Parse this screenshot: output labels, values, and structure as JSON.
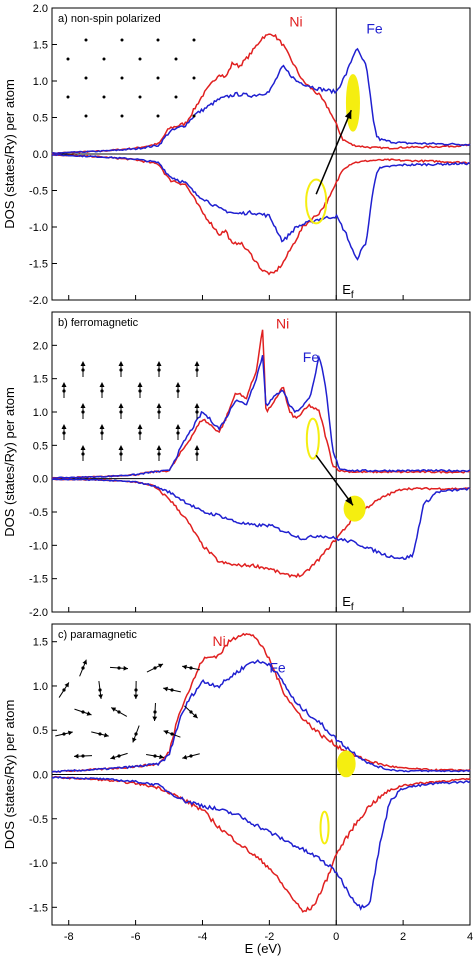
{
  "figure": {
    "xlabel": "E (eV)",
    "ylabel": "DOS (states/Ry) per atom"
  },
  "colors": {
    "ni": "#e02020",
    "fe": "#2020d0",
    "highlight": "#f5ee10",
    "axis": "#000000"
  },
  "chart_data": [
    {
      "type": "line",
      "title": "a) non-spin polarized",
      "xlabel": "",
      "ylabel": "DOS (states/Ry) per atom",
      "xlim": [
        -8.5,
        4
      ],
      "ylim": [
        -2.0,
        2.0
      ],
      "xticks": [
        -8,
        -6,
        -4,
        -2,
        0,
        2,
        4
      ],
      "yticks": [
        "2.0",
        "1.5",
        "1.0",
        "0.5",
        "0.0",
        "-0.5",
        "-1.0",
        "-1.5",
        "-2.0"
      ],
      "fermi_label": "Ef",
      "inset": "dots",
      "series": [
        {
          "name": "Ni",
          "x": [
            -8.5,
            -7,
            -6,
            -5.3,
            -5,
            -4.5,
            -4.2,
            -4,
            -3.5,
            -3.3,
            -3.1,
            -2.9,
            -2.6,
            -2.2,
            -1.9,
            -1.6,
            -1.3,
            -1,
            -0.5,
            -0.2,
            0,
            0.2,
            0.5,
            1,
            1.6,
            2,
            3,
            4
          ],
          "y": [
            0.01,
            0.04,
            0.08,
            0.14,
            0.35,
            0.42,
            0.65,
            0.8,
            1.1,
            1.05,
            1.25,
            1.2,
            1.35,
            1.6,
            1.65,
            1.5,
            1.25,
            1.0,
            0.8,
            0.6,
            0.4,
            0.2,
            0.12,
            0.09,
            0.08,
            0.09,
            0.1,
            0.12
          ]
        },
        {
          "name": "Fe",
          "x": [
            -8.5,
            -7,
            -6,
            -5.3,
            -5,
            -4.5,
            -4.2,
            -4,
            -3.5,
            -3,
            -2.5,
            -2,
            -1.6,
            -1.2,
            -0.6,
            0,
            0.3,
            0.6,
            0.9,
            1.1,
            1.2,
            1.3,
            1.6,
            2,
            3,
            4
          ],
          "y": [
            0.01,
            0.04,
            0.07,
            0.12,
            0.3,
            0.4,
            0.55,
            0.6,
            0.75,
            0.82,
            0.8,
            0.85,
            1.2,
            1.0,
            0.9,
            0.85,
            1.1,
            1.45,
            1.2,
            0.5,
            0.25,
            0.2,
            0.17,
            0.15,
            0.14,
            0.13
          ]
        },
        {
          "name": "Ni down",
          "x": [
            -8.5,
            -7,
            -6,
            -5.3,
            -5,
            -4.5,
            -4.2,
            -4,
            -3.5,
            -3.3,
            -3.1,
            -2.9,
            -2.6,
            -2.2,
            -1.9,
            -1.6,
            -1.3,
            -1,
            -0.5,
            -0.2,
            0,
            0.2,
            0.5,
            1,
            1.6,
            2,
            3,
            4
          ],
          "y": [
            -0.01,
            -0.04,
            -0.08,
            -0.14,
            -0.35,
            -0.42,
            -0.65,
            -0.8,
            -1.1,
            -1.05,
            -1.25,
            -1.2,
            -1.35,
            -1.6,
            -1.65,
            -1.5,
            -1.25,
            -1.0,
            -0.8,
            -0.6,
            -0.4,
            -0.2,
            -0.12,
            -0.09,
            -0.08,
            -0.09,
            -0.1,
            -0.12
          ]
        },
        {
          "name": "Fe down",
          "x": [
            -8.5,
            -7,
            -6,
            -5.3,
            -5,
            -4.5,
            -4.2,
            -4,
            -3.5,
            -3,
            -2.5,
            -2,
            -1.6,
            -1.2,
            -0.6,
            0,
            0.3,
            0.6,
            0.9,
            1.1,
            1.2,
            1.3,
            1.6,
            2,
            3,
            4
          ],
          "y": [
            -0.01,
            -0.04,
            -0.07,
            -0.12,
            -0.3,
            -0.4,
            -0.55,
            -0.6,
            -0.75,
            -0.82,
            -0.8,
            -0.85,
            -1.2,
            -1.0,
            -0.9,
            -0.85,
            -1.1,
            -1.45,
            -1.2,
            -0.5,
            -0.25,
            -0.2,
            -0.17,
            -0.15,
            -0.14,
            -0.13
          ]
        }
      ],
      "highlights": [
        {
          "shape": "ellipse",
          "fill": true,
          "cx": 0.5,
          "cy": 0.7,
          "rx": 0.18,
          "ry": 0.38
        },
        {
          "shape": "ellipse",
          "fill": false,
          "cx": -0.6,
          "cy": -0.65,
          "rx": 0.3,
          "ry": 0.3
        }
      ],
      "arrow": {
        "from": [
          -0.6,
          -0.55
        ],
        "to": [
          0.45,
          0.6
        ]
      }
    },
    {
      "type": "line",
      "title": "b) ferromagnetic",
      "xlabel": "",
      "ylabel": "DOS (states/Ry) per atom",
      "xlim": [
        -8.5,
        4
      ],
      "ylim": [
        -2.0,
        2.5
      ],
      "xticks": [
        -8,
        -6,
        -4,
        -2,
        0,
        2,
        4
      ],
      "yticks": [
        "2.0",
        "1.5",
        "1.0",
        "0.5",
        "0.0",
        "-0.5",
        "-1.0",
        "-1.5",
        "-2.0"
      ],
      "fermi_label": "Ef",
      "inset": "spins-aligned",
      "series": [
        {
          "name": "Ni",
          "x": [
            -8.5,
            -7,
            -6,
            -5.5,
            -5,
            -4.5,
            -4,
            -3.5,
            -3.3,
            -3,
            -2.7,
            -2.4,
            -2.2,
            -2.1,
            -1.9,
            -1.6,
            -1.4,
            -1.2,
            -0.8,
            -0.5,
            -0.3,
            -0.1,
            0.1,
            0.5,
            1,
            2,
            3,
            4
          ],
          "y": [
            0.01,
            0.03,
            0.06,
            0.1,
            0.12,
            0.5,
            0.9,
            0.7,
            0.9,
            1.3,
            1.2,
            1.6,
            2.25,
            1.0,
            1.1,
            1.4,
            1.0,
            0.9,
            1.1,
            1.0,
            0.6,
            0.2,
            0.12,
            0.1,
            0.1,
            0.1,
            0.1,
            0.1
          ]
        },
        {
          "name": "Fe",
          "x": [
            -8.5,
            -7,
            -6,
            -5.5,
            -5,
            -4.5,
            -4,
            -3.5,
            -3.3,
            -3,
            -2.7,
            -2.4,
            -2.2,
            -2.1,
            -1.9,
            -1.6,
            -1.4,
            -1.2,
            -0.8,
            -0.5,
            -0.3,
            -0.1,
            0.1,
            0.5,
            1,
            2,
            3,
            4
          ],
          "y": [
            0.01,
            0.03,
            0.06,
            0.1,
            0.12,
            0.6,
            1.0,
            0.75,
            0.9,
            1.2,
            1.1,
            1.5,
            1.85,
            1.1,
            1.2,
            1.35,
            1.1,
            1.0,
            1.2,
            1.85,
            1.3,
            0.4,
            0.15,
            0.12,
            0.12,
            0.12,
            0.12,
            0.12
          ]
        },
        {
          "name": "Ni down",
          "x": [
            -8.5,
            -7,
            -6,
            -5.5,
            -5,
            -4.5,
            -4,
            -3.5,
            -3,
            -2.5,
            -2,
            -1.5,
            -1,
            -0.5,
            0,
            0.5,
            1,
            1.5,
            2,
            3,
            4
          ],
          "y": [
            -0.01,
            -0.02,
            -0.05,
            -0.1,
            -0.3,
            -0.6,
            -1.0,
            -1.25,
            -1.3,
            -1.3,
            -1.35,
            -1.45,
            -1.45,
            -1.2,
            -0.9,
            -0.6,
            -0.4,
            -0.25,
            -0.15,
            -0.15,
            -0.15
          ]
        },
        {
          "name": "Fe down",
          "x": [
            -8.5,
            -7,
            -6,
            -5.5,
            -5,
            -4.5,
            -4,
            -3.5,
            -3,
            -2.5,
            -2,
            -1.5,
            -1,
            -0.5,
            0,
            0.5,
            1,
            1.5,
            2,
            2.3,
            2.6,
            3,
            4
          ],
          "y": [
            -0.01,
            -0.02,
            -0.05,
            -0.1,
            -0.2,
            -0.35,
            -0.5,
            -0.55,
            -0.65,
            -0.7,
            -0.7,
            -0.8,
            -0.9,
            -0.85,
            -0.9,
            -0.95,
            -1.05,
            -1.15,
            -1.2,
            -1.15,
            -0.4,
            -0.2,
            -0.15
          ]
        }
      ],
      "highlights": [
        {
          "shape": "ellipse",
          "fill": false,
          "cx": -0.7,
          "cy": 0.6,
          "rx": 0.18,
          "ry": 0.3
        },
        {
          "shape": "ellipse",
          "fill": true,
          "cx": 0.55,
          "cy": -0.45,
          "rx": 0.3,
          "ry": 0.18
        }
      ],
      "arrow": {
        "from": [
          -0.6,
          0.35
        ],
        "to": [
          0.5,
          -0.4
        ]
      }
    },
    {
      "type": "line",
      "title": "c) paramagnetic",
      "xlabel": "E (eV)",
      "ylabel": "DOS (states/Ry) per atom",
      "xlim": [
        -8.5,
        4
      ],
      "ylim": [
        -1.7,
        1.7
      ],
      "xticks": [
        -8,
        -6,
        -4,
        -2,
        0,
        2,
        4
      ],
      "yticks": [
        "1.5",
        "1.0",
        "0.5",
        "0.0",
        "-0.5",
        "-1.0",
        "-1.5"
      ],
      "inset": "spins-random",
      "series": [
        {
          "name": "Ni",
          "x": [
            -8.5,
            -7,
            -6,
            -5.3,
            -5,
            -4.7,
            -4.4,
            -4,
            -3.5,
            -3.2,
            -2.8,
            -2.4,
            -2,
            -1.6,
            -1.2,
            -0.8,
            -0.4,
            0,
            0.5,
            1,
            1.5,
            2,
            3,
            4
          ],
          "y": [
            0.03,
            0.06,
            0.09,
            0.12,
            0.25,
            0.7,
            0.95,
            1.3,
            1.35,
            1.5,
            1.6,
            1.55,
            1.3,
            0.95,
            0.72,
            0.56,
            0.43,
            0.33,
            0.22,
            0.15,
            0.1,
            0.07,
            0.05,
            0.05
          ]
        },
        {
          "name": "Fe",
          "x": [
            -8.5,
            -7,
            -6,
            -5.3,
            -5,
            -4.7,
            -4.4,
            -4,
            -3.5,
            -3,
            -2.5,
            -2,
            -1.6,
            -1.2,
            -0.8,
            -0.4,
            0,
            0.5,
            1,
            1.5,
            2,
            3,
            4
          ],
          "y": [
            0.03,
            0.06,
            0.09,
            0.12,
            0.22,
            0.6,
            0.85,
            1.05,
            1.0,
            1.15,
            1.28,
            1.25,
            1.05,
            0.8,
            0.68,
            0.55,
            0.4,
            0.25,
            0.12,
            0.06,
            0.04,
            0.04,
            0.04
          ]
        },
        {
          "name": "Ni down",
          "x": [
            -8.5,
            -7,
            -6,
            -5.3,
            -5,
            -4.5,
            -4,
            -3.5,
            -3,
            -2.5,
            -2,
            -1.5,
            -1,
            -0.7,
            -0.3,
            0,
            0.5,
            1,
            1.5,
            2,
            3,
            4
          ],
          "y": [
            -0.03,
            -0.06,
            -0.1,
            -0.15,
            -0.2,
            -0.3,
            -0.4,
            -0.6,
            -0.75,
            -0.9,
            -1.05,
            -1.3,
            -1.55,
            -1.5,
            -1.2,
            -0.9,
            -0.6,
            -0.35,
            -0.2,
            -0.12,
            -0.08,
            -0.05
          ]
        },
        {
          "name": "Fe down",
          "x": [
            -8.5,
            -7,
            -6,
            -5.3,
            -5,
            -4.5,
            -4,
            -3.5,
            -3,
            -2.5,
            -2,
            -1.5,
            -1,
            -0.5,
            0,
            0.4,
            0.7,
            1,
            1.3,
            1.6,
            2,
            3,
            4
          ],
          "y": [
            -0.03,
            -0.05,
            -0.08,
            -0.12,
            -0.2,
            -0.3,
            -0.35,
            -0.4,
            -0.45,
            -0.55,
            -0.65,
            -0.75,
            -0.85,
            -0.95,
            -1.1,
            -1.35,
            -1.5,
            -1.45,
            -0.8,
            -0.3,
            -0.15,
            -0.1,
            -0.08
          ]
        }
      ],
      "highlights": [
        {
          "shape": "ellipse",
          "fill": true,
          "cx": 0.3,
          "cy": 0.12,
          "rx": 0.25,
          "ry": 0.14
        },
        {
          "shape": "ellipse",
          "fill": false,
          "cx": -0.35,
          "cy": -0.6,
          "rx": 0.12,
          "ry": 0.18
        }
      ]
    }
  ]
}
